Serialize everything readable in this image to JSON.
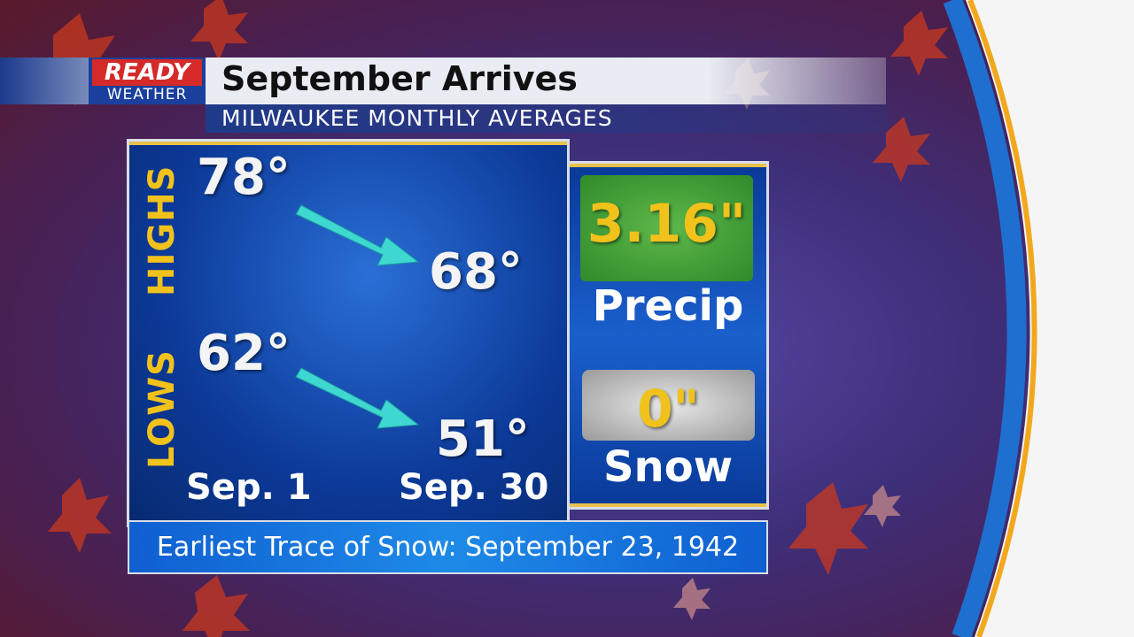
{
  "header": {
    "logo": {
      "line1": "READY",
      "line2": "WEATHER"
    },
    "title": "September Arrives",
    "subtitle": "MILWAUKEE MONTHLY AVERAGES"
  },
  "temperatures": {
    "highs": {
      "label": "HIGHS",
      "start": "78°",
      "end": "68°"
    },
    "lows": {
      "label": "LOWS",
      "start": "62°",
      "end": "51°"
    },
    "start_date": "Sep. 1",
    "end_date": "Sep. 30"
  },
  "precip": {
    "value": "3.16\"",
    "label": "Precip"
  },
  "snow": {
    "value": "0\"",
    "label": "Snow"
  },
  "footer": "Earliest Trace of Snow: September 23, 1942"
}
